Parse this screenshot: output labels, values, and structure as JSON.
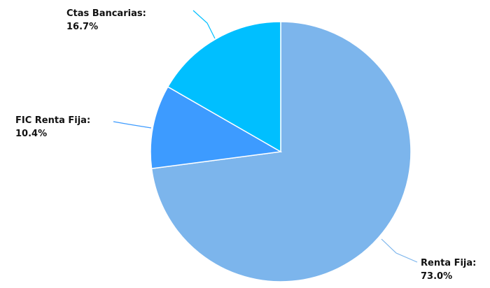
{
  "chart_data": {
    "type": "pie",
    "title": "",
    "slices": [
      {
        "name": "Renta Fija",
        "value": 73.0,
        "label": "Renta Fija:",
        "pct_label": "73.0%",
        "color": "#7cb5ec"
      },
      {
        "name": "FIC Renta Fija",
        "value": 10.4,
        "label": "FIC Renta Fija:",
        "pct_label": "10.4%",
        "color": "#3d9bff"
      },
      {
        "name": "Ctas Bancarias",
        "value": 16.7,
        "label": "Ctas Bancarias:",
        "pct_label": "16.7%",
        "color": "#00bfff"
      }
    ],
    "start_angle": "12 o'clock",
    "direction": "clockwise",
    "legend": "none"
  }
}
